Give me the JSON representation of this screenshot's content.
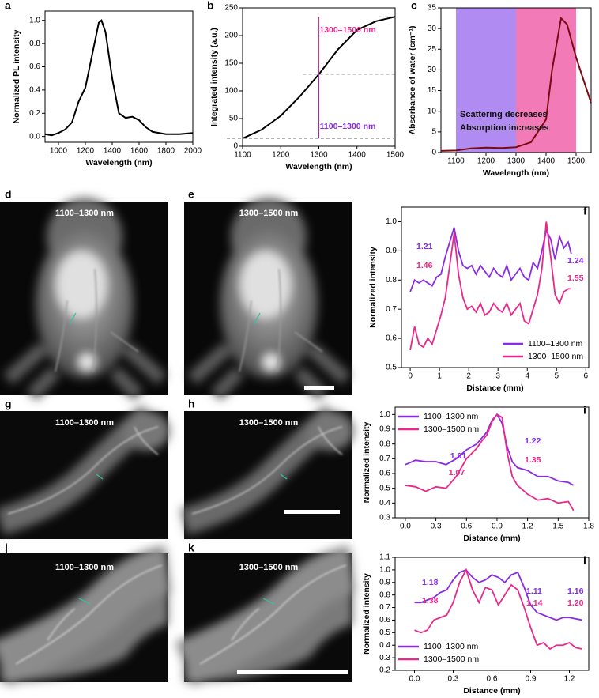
{
  "chart_data": [
    {
      "type": "line",
      "panel": "a",
      "xlabel": "Wavelength (nm)",
      "ylabel": "Normalized PL intensity",
      "color": "#000000",
      "x": [
        900,
        950,
        1000,
        1050,
        1100,
        1150,
        1200,
        1250,
        1300,
        1320,
        1350,
        1400,
        1450,
        1500,
        1550,
        1600,
        1650,
        1700,
        1800,
        1900,
        2000
      ],
      "values": [
        0.02,
        0.01,
        0.03,
        0.06,
        0.12,
        0.3,
        0.42,
        0.7,
        0.98,
        1.0,
        0.9,
        0.5,
        0.2,
        0.16,
        0.17,
        0.14,
        0.08,
        0.04,
        0.02,
        0.02,
        0.03
      ],
      "xlim": [
        900,
        2000
      ],
      "xticks": [
        1000,
        1200,
        1400,
        1600,
        1800,
        2000
      ],
      "ylim": [
        -0.05,
        1.08
      ],
      "yticks": [
        {
          "value": 0,
          "label": "0.0"
        },
        0.2,
        0.4,
        0.6,
        0.8,
        {
          "value": 1,
          "label": "1.0"
        }
      ]
    },
    {
      "type": "line",
      "panel": "b",
      "xlabel": "Wavelength (nm)",
      "ylabel": "Integrated intensity (a.u.)",
      "color": "#000000",
      "x": [
        1100,
        1150,
        1200,
        1250,
        1300,
        1350,
        1400,
        1450,
        1500
      ],
      "values": [
        14,
        30,
        55,
        90,
        130,
        175,
        210,
        226,
        234
      ],
      "xlim": [
        1100,
        1500
      ],
      "xticks": [
        1100,
        1200,
        1300,
        1400,
        1500
      ],
      "ylim": [
        0,
        250
      ],
      "yticks": [
        0,
        50,
        100,
        150,
        200,
        250
      ],
      "annotations": [
        {
          "text": "1300–1500 nm",
          "color": "#e8288a"
        },
        {
          "text": "1100–1300 nm",
          "color": "#8a2be2"
        }
      ]
    },
    {
      "type": "line",
      "panel": "c",
      "xlabel": "Wavelength (nm)",
      "ylabel": "Absorbance of water (cm⁻¹)",
      "color": "#7a0a14",
      "x": [
        1050,
        1100,
        1150,
        1200,
        1250,
        1300,
        1350,
        1400,
        1420,
        1450,
        1470,
        1500,
        1550
      ],
      "values": [
        0.4,
        0.5,
        1.0,
        1.2,
        1.1,
        1.3,
        2.5,
        8,
        20,
        32.5,
        31,
        23,
        12
      ],
      "xlim": [
        1050,
        1550
      ],
      "xticks": [
        1100,
        1200,
        1300,
        1400,
        1500
      ],
      "ylim": [
        0,
        35
      ],
      "yticks": [
        0,
        5,
        10,
        15,
        20,
        25,
        30,
        35
      ],
      "bands": [
        {
          "range": [
            1100,
            1300
          ],
          "color": "#b08cf2"
        },
        {
          "range": [
            1300,
            1500
          ],
          "color": "#f27ab6"
        }
      ],
      "annotations": [
        {
          "text": "Scattering decreases",
          "color": "#111111"
        },
        {
          "text": "Absorption increases",
          "color": "#111111"
        }
      ]
    },
    {
      "type": "line",
      "panel": "f",
      "xlabel": "Distance (mm)",
      "ylabel": "Normalized intensity",
      "legend": "lower right",
      "x": [
        0,
        0.15,
        0.3,
        0.45,
        0.6,
        0.75,
        0.9,
        1.05,
        1.2,
        1.35,
        1.5,
        1.65,
        1.8,
        1.95,
        2.1,
        2.25,
        2.4,
        2.55,
        2.7,
        2.85,
        3.0,
        3.15,
        3.3,
        3.45,
        3.6,
        3.75,
        3.9,
        4.05,
        4.2,
        4.35,
        4.5,
        4.65,
        4.8,
        4.95,
        5.1,
        5.25,
        5.4,
        5.5
      ],
      "series": [
        {
          "name": "1100–1300 nm",
          "color": "#8a2be2",
          "values": [
            0.76,
            0.8,
            0.79,
            0.8,
            0.79,
            0.78,
            0.81,
            0.82,
            0.88,
            0.93,
            0.98,
            0.9,
            0.85,
            0.84,
            0.85,
            0.82,
            0.85,
            0.83,
            0.81,
            0.84,
            0.82,
            0.81,
            0.85,
            0.8,
            0.82,
            0.84,
            0.81,
            0.8,
            0.86,
            0.84,
            0.9,
            0.97,
            0.94,
            0.87,
            0.95,
            0.91,
            0.93,
            0.89
          ]
        },
        {
          "name": "1300–1500 nm",
          "color": "#e8288a",
          "values": [
            0.56,
            0.64,
            0.58,
            0.57,
            0.6,
            0.58,
            0.63,
            0.68,
            0.74,
            0.85,
            0.96,
            0.82,
            0.74,
            0.7,
            0.71,
            0.69,
            0.72,
            0.68,
            0.69,
            0.72,
            0.7,
            0.69,
            0.72,
            0.68,
            0.7,
            0.72,
            0.66,
            0.65,
            0.7,
            0.75,
            0.84,
            1.0,
            0.88,
            0.75,
            0.72,
            0.76,
            0.77,
            0.77
          ]
        }
      ],
      "xlim": [
        -0.3,
        6.1
      ],
      "xticks": [
        0,
        1,
        2,
        3,
        4,
        5,
        6
      ],
      "ylim": [
        0.5,
        1.05
      ],
      "yticks": [
        0.5,
        0.6,
        0.7,
        0.8,
        0.9,
        {
          "value": 1,
          "label": "1.0"
        }
      ],
      "annotations": [
        {
          "text": "1.21",
          "color": "#8a2be2"
        },
        {
          "text": "1.46",
          "color": "#e8288a"
        },
        {
          "text": "1.24",
          "color": "#8a2be2"
        },
        {
          "text": "1.55",
          "color": "#e8288a"
        }
      ]
    },
    {
      "type": "line",
      "panel": "i",
      "xlabel": "Distance (mm)",
      "ylabel": "Normalized intensity",
      "legend": "upper left",
      "x": [
        0,
        0.1,
        0.2,
        0.3,
        0.4,
        0.5,
        0.6,
        0.7,
        0.75,
        0.8,
        0.85,
        0.9,
        0.95,
        1.0,
        1.05,
        1.1,
        1.2,
        1.3,
        1.4,
        1.5,
        1.6,
        1.65
      ],
      "series": [
        {
          "name": "1100–1300 nm",
          "color": "#8a2be2",
          "values": [
            0.66,
            0.69,
            0.68,
            0.68,
            0.66,
            0.7,
            0.76,
            0.8,
            0.84,
            0.88,
            0.96,
            1.0,
            0.94,
            0.78,
            0.68,
            0.64,
            0.62,
            0.58,
            0.58,
            0.55,
            0.54,
            0.52
          ]
        },
        {
          "name": "1300–1500 nm",
          "color": "#e8288a",
          "values": [
            0.52,
            0.51,
            0.48,
            0.51,
            0.5,
            0.58,
            0.7,
            0.77,
            0.82,
            0.86,
            0.95,
            1.0,
            0.98,
            0.74,
            0.58,
            0.52,
            0.46,
            0.42,
            0.43,
            0.4,
            0.41,
            0.35
          ]
        }
      ],
      "xlim": [
        -0.1,
        1.8
      ],
      "xticks": [
        {
          "value": 0,
          "label": "0.0"
        },
        0.3,
        0.6,
        0.9,
        1.2,
        1.5,
        1.8
      ],
      "ylim": [
        0.3,
        1.05
      ],
      "yticks": [
        0.3,
        0.4,
        0.5,
        0.6,
        0.7,
        0.8,
        0.9,
        {
          "value": 1,
          "label": "1.0"
        }
      ],
      "annotations": [
        {
          "text": "1.01",
          "color": "#8a2be2"
        },
        {
          "text": "1.07",
          "color": "#e8288a"
        },
        {
          "text": "1.22",
          "color": "#8a2be2"
        },
        {
          "text": "1.35",
          "color": "#e8288a"
        }
      ]
    },
    {
      "type": "line",
      "panel": "l",
      "xlabel": "Distance (mm)",
      "ylabel": "Normalized intensity",
      "legend": "lower left",
      "x": [
        0,
        0.05,
        0.1,
        0.15,
        0.2,
        0.25,
        0.3,
        0.35,
        0.4,
        0.45,
        0.5,
        0.55,
        0.6,
        0.65,
        0.7,
        0.75,
        0.8,
        0.85,
        0.9,
        0.95,
        1.0,
        1.05,
        1.1,
        1.15,
        1.2,
        1.25,
        1.3
      ],
      "series": [
        {
          "name": "1100–1300 nm",
          "color": "#8a2be2",
          "values": [
            0.74,
            0.74,
            0.76,
            0.78,
            0.82,
            0.84,
            0.92,
            0.98,
            1.0,
            0.94,
            0.9,
            0.92,
            0.96,
            0.94,
            0.9,
            0.96,
            0.98,
            0.86,
            0.72,
            0.66,
            0.64,
            0.62,
            0.6,
            0.62,
            0.62,
            0.61,
            0.6
          ]
        },
        {
          "name": "1300–1500 nm",
          "color": "#e8288a",
          "values": [
            0.52,
            0.5,
            0.52,
            0.6,
            0.62,
            0.64,
            0.74,
            0.9,
            1.0,
            0.84,
            0.74,
            0.86,
            0.84,
            0.72,
            0.8,
            0.88,
            0.84,
            0.7,
            0.54,
            0.4,
            0.42,
            0.37,
            0.4,
            0.4,
            0.42,
            0.38,
            0.37
          ]
        }
      ],
      "xlim": [
        -0.15,
        1.35
      ],
      "xticks": [
        {
          "value": 0,
          "label": "0.0"
        },
        0.3,
        0.6,
        0.9,
        1.2
      ],
      "ylim": [
        0.2,
        1.1
      ],
      "yticks": [
        0.2,
        0.3,
        0.4,
        0.5,
        0.6,
        0.7,
        0.8,
        0.9,
        {
          "value": 1,
          "label": "1.0"
        },
        1.1
      ],
      "annotations": [
        {
          "text": "1.18",
          "color": "#8a2be2"
        },
        {
          "text": "1.38",
          "color": "#e8288a"
        },
        {
          "text": "1.11",
          "color": "#8a2be2"
        },
        {
          "text": "1.14",
          "color": "#e8288a"
        },
        {
          "text": "1.16",
          "color": "#8a2be2"
        },
        {
          "text": "1.20",
          "color": "#e8288a"
        }
      ]
    }
  ],
  "images": [
    {
      "panel": "d",
      "label": "1100–1300 nm"
    },
    {
      "panel": "e",
      "label": "1300–1500 nm"
    },
    {
      "panel": "g",
      "label": "1100–1300 nm"
    },
    {
      "panel": "h",
      "label": "1300–1500 nm"
    },
    {
      "panel": "j",
      "label": "1100–1300 nm"
    },
    {
      "panel": "k",
      "label": "1300–1500 nm"
    }
  ]
}
